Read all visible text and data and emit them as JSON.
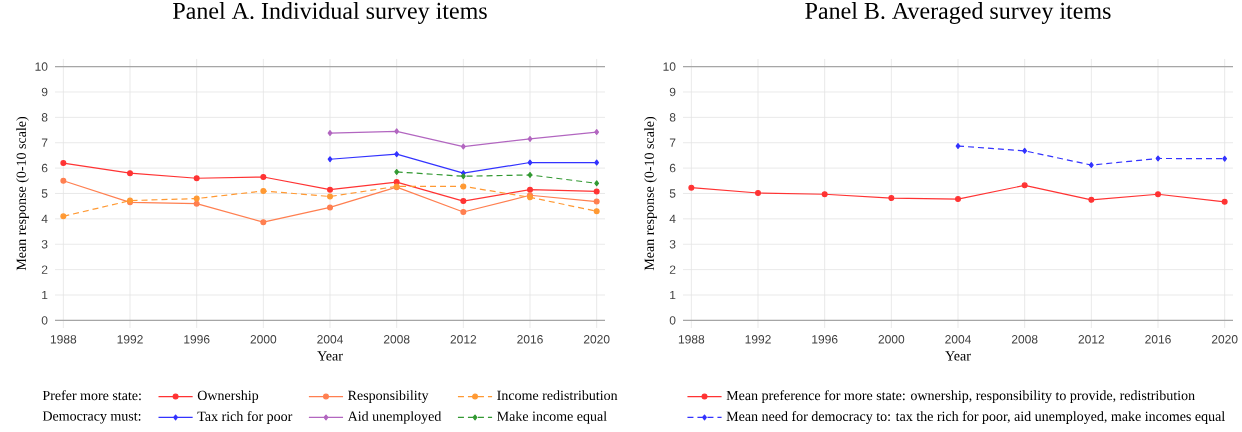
{
  "chart_data": [
    {
      "type": "line",
      "title": "Panel A. Individual survey items",
      "xlabel": "Year",
      "ylabel": "Mean response (0-10 scale)",
      "x": [
        1988,
        1992,
        1996,
        2000,
        2004,
        2008,
        2012,
        2016,
        2020
      ],
      "xlim": [
        1987.5,
        2020.5
      ],
      "xticks": [
        1988,
        1992,
        1996,
        2000,
        2004,
        2008,
        2012,
        2016,
        2020
      ],
      "ylim": [
        -0.3,
        10.3
      ],
      "yticks": [
        0,
        1,
        2,
        3,
        4,
        5,
        6,
        7,
        8,
        9,
        10
      ],
      "grid": true,
      "legend": "bottom",
      "annotations": [
        "Prefer more state:",
        "Democracy must:"
      ],
      "series": [
        {
          "name": "Ownership",
          "color": "#ff3333",
          "marker": "circle",
          "line_style": "solid",
          "values": [
            6.2,
            5.8,
            5.6,
            5.65,
            5.15,
            5.45,
            4.7,
            5.15,
            5.08
          ]
        },
        {
          "name": "Responsibility",
          "color": "#ff7f50",
          "marker": "circle",
          "line_style": "solid",
          "values": [
            5.5,
            4.65,
            4.6,
            3.87,
            4.45,
            5.25,
            4.27,
            4.93,
            4.68
          ]
        },
        {
          "name": "Income redistribution",
          "color": "#ff9933",
          "marker": "circle",
          "line_style": "dashed",
          "values": [
            4.1,
            4.72,
            4.8,
            5.1,
            4.88,
            5.28,
            5.28,
            4.85,
            4.3
          ]
        },
        {
          "name": "Tax rich for poor",
          "color": "#3333ff",
          "marker": "diamond",
          "line_style": "solid",
          "values": [
            null,
            null,
            null,
            null,
            6.35,
            6.55,
            5.8,
            6.22,
            6.22
          ]
        },
        {
          "name": "Aid unemployed",
          "color": "#b266c0",
          "marker": "diamond",
          "line_style": "solid",
          "values": [
            null,
            null,
            null,
            null,
            7.38,
            7.45,
            6.85,
            7.15,
            7.42
          ]
        },
        {
          "name": "Make income equal",
          "color": "#339933",
          "marker": "diamond",
          "line_style": "dashed",
          "values": [
            null,
            null,
            null,
            null,
            null,
            5.85,
            5.68,
            5.73,
            5.4
          ]
        }
      ]
    },
    {
      "type": "line",
      "title": "Panel B. Averaged survey items",
      "xlabel": "Year",
      "ylabel": "Mean response (0-10 scale)",
      "x": [
        1988,
        1992,
        1996,
        2000,
        2004,
        2008,
        2012,
        2016,
        2020
      ],
      "xlim": [
        1987.5,
        2020.5
      ],
      "xticks": [
        1988,
        1992,
        1996,
        2000,
        2004,
        2008,
        2012,
        2016,
        2020
      ],
      "ylim": [
        -0.3,
        10.3
      ],
      "yticks": [
        0,
        1,
        2,
        3,
        4,
        5,
        6,
        7,
        8,
        9,
        10
      ],
      "grid": true,
      "legend": "bottom",
      "series": [
        {
          "name": "Mean preference for more state: ownership, responsibility to provide, redistribution",
          "color": "#ff3333",
          "marker": "circle",
          "line_style": "solid",
          "values": [
            5.23,
            5.02,
            4.97,
            4.82,
            4.78,
            5.32,
            4.75,
            4.97,
            4.67
          ]
        },
        {
          "name": "Mean need for democracy to: tax the rich for poor, aid unemployed, make incomes equal",
          "color": "#3333ff",
          "marker": "diamond",
          "line_style": "dashed",
          "values": [
            null,
            null,
            null,
            null,
            6.87,
            6.68,
            6.12,
            6.38,
            6.37
          ]
        }
      ]
    }
  ]
}
